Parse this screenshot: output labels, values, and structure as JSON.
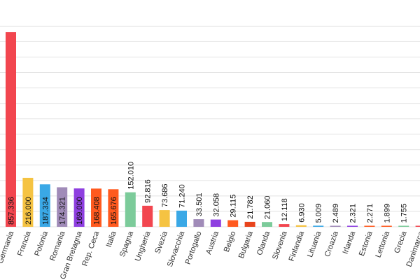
{
  "chart_data": {
    "type": "bar",
    "categories": [
      "Germania",
      "Francia",
      "Polonia",
      "Romania",
      "Gran Bretagna",
      "Rep. Ceca",
      "Italia",
      "Spagna",
      "Ungheria",
      "Svezia",
      "Slovacchia",
      "Portogallo",
      "Austria",
      "Belgio",
      "Bulgaria",
      "Olanda",
      "Slovenia",
      "Finlandia",
      "Lituania",
      "Croazia",
      "Irlanda",
      "Estonia",
      "Lettonia",
      "Grecia",
      "Danimarca"
    ],
    "values": [
      857336,
      216000,
      187334,
      174321,
      169000,
      168408,
      165676,
      152010,
      92816,
      73686,
      71240,
      33501,
      32058,
      29115,
      21782,
      21060,
      12118,
      6930,
      5009,
      2489,
      2321,
      2271,
      1899,
      1755,
      500
    ],
    "labels": [
      "857.336",
      "216.000",
      "187.334",
      "174.321",
      "169.000",
      "168.408",
      "165.676",
      "152.010",
      "92.816",
      "73.686",
      "71.240",
      "33.501",
      "32.058",
      "29.115",
      "21.782",
      "21.060",
      "12.118",
      "6.930",
      "5.009",
      "2.489",
      "2.321",
      "2.271",
      "1.899",
      "1.755",
      ""
    ],
    "colors": [
      "#f2464f",
      "#f5c342",
      "#3aa8e6",
      "#a08bb8",
      "#8e3fe0",
      "#ff5a1f",
      "#ff5a1f",
      "#7ccb9a",
      "#f2464f",
      "#f5c342",
      "#3aa8e6",
      "#a08bb8",
      "#8e3fe0",
      "#ff5a1f",
      "#e8441c",
      "#7ccb9a",
      "#f2464f",
      "#f5c342",
      "#3aa8e6",
      "#a08bb8",
      "#8e3fe0",
      "#ff5a1f",
      "#ff5a1f",
      "#7ccb9a",
      "#f2464f"
    ],
    "label_inside": [
      true,
      true,
      true,
      true,
      true,
      true,
      true,
      false,
      false,
      false,
      false,
      false,
      false,
      false,
      false,
      false,
      false,
      false,
      false,
      false,
      false,
      false,
      false,
      false,
      false
    ],
    "ylim": [
      0,
      900000
    ],
    "grid": true,
    "title": "",
    "xlabel": "",
    "ylabel": ""
  }
}
